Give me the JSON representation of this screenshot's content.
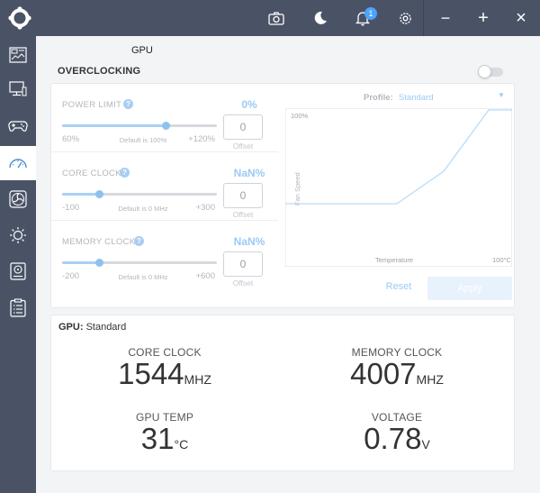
{
  "titlebar": {
    "notification_count": "1",
    "minimize": "−",
    "maximize": "+",
    "close": "×"
  },
  "sidebar": {
    "items": [
      {
        "icon": "dashboard-icon",
        "active": false
      },
      {
        "icon": "monitor-icon",
        "active": false
      },
      {
        "icon": "gamepad-icon",
        "active": false
      },
      {
        "icon": "speedometer-icon",
        "active": true
      },
      {
        "icon": "fan-icon",
        "active": false
      },
      {
        "icon": "brightness-icon",
        "active": false
      },
      {
        "icon": "storage-icon",
        "active": false
      },
      {
        "icon": "clipboard-icon",
        "active": false
      }
    ]
  },
  "page": {
    "title": "GPU",
    "section": "OVERCLOCKING",
    "toggle_on": false
  },
  "sliders": [
    {
      "label": "POWER LIMIT",
      "value": "0%",
      "min": "60%",
      "max": "+120%",
      "default": "Default is 100%",
      "input": "0",
      "caption": "Offset",
      "position": 0.67
    },
    {
      "label": "CORE CLOCK",
      "value": "NaN%",
      "min": "-100",
      "max": "+300",
      "default": "Default is 0 MHz",
      "input": "0",
      "caption": "Offset",
      "position": 0.24
    },
    {
      "label": "MEMORY CLOCK",
      "value": "NaN%",
      "min": "-200",
      "max": "+600",
      "default": "Default is 0 MHz",
      "input": "0",
      "caption": "Offset",
      "position": 0.24
    }
  ],
  "fan": {
    "profile_label": "Profile:",
    "profile_value": "Standard",
    "y_top": "100%",
    "y_axis": "Fan Speed",
    "x_axis": "Temperature",
    "x_end": "100°C",
    "reset": "Reset",
    "apply": "Apply"
  },
  "stats": {
    "head_label": "GPU:",
    "head_value": "Standard",
    "core_clock": {
      "label": "CORE CLOCK",
      "value": "1544",
      "unit": "MHZ"
    },
    "memory_clock": {
      "label": "MEMORY CLOCK",
      "value": "4007",
      "unit": "MHZ"
    },
    "gpu_temp": {
      "label": "GPU TEMP",
      "value": "31",
      "unit": "°C"
    },
    "voltage": {
      "label": "VOLTAGE",
      "value": "0.78",
      "unit": "V"
    }
  },
  "colors": {
    "chrome": "#4a5366",
    "accent": "#9ccaf4",
    "background": "#f3f4f6"
  }
}
